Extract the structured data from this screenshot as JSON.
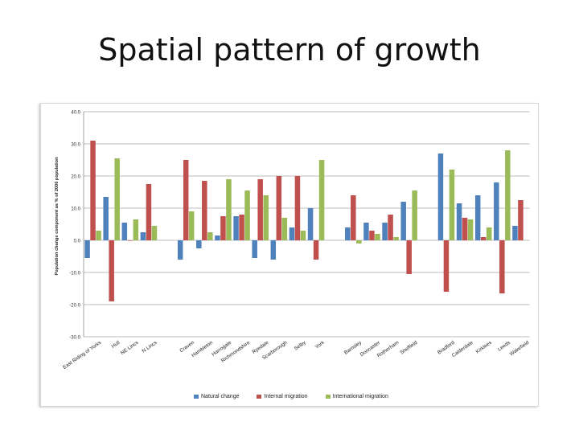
{
  "slide": {
    "title": "Spatial pattern of growth"
  },
  "chart_data": {
    "type": "bar",
    "ylabel": "Population change component as % of 2006 population",
    "ylim": [
      -30,
      40
    ],
    "yticks": [
      "40.0",
      "30.0",
      "20.0",
      "10.0",
      "0.0",
      "-10.0",
      "-20.0",
      "-30.0"
    ],
    "ytick_values": [
      40,
      30,
      20,
      10,
      0,
      -10,
      -20,
      -30
    ],
    "grid": true,
    "legend_position": "bottom",
    "categories": [
      "East Riding of Yorks",
      "Hull",
      "NE Lincs",
      "N Lincs",
      "",
      "Craven",
      "Hambleton",
      "Harrogate",
      "Richmondshire",
      "Ryedale",
      "Scarborough",
      "Selby",
      "York",
      "",
      "Barnsley",
      "Doncaster",
      "Rotherham",
      "Sheffield",
      "",
      "Bradford",
      "Calderdale",
      "Kirklees",
      "Leeds",
      "Wakefield"
    ],
    "series": [
      {
        "name": "Natural change",
        "color": "#4f81bd",
        "values": [
          -5.5,
          13.5,
          5.5,
          2.5,
          null,
          -6,
          -2.5,
          1.5,
          7.5,
          -5.5,
          -6,
          4,
          10,
          null,
          4,
          5.5,
          5.5,
          12,
          null,
          27,
          11.5,
          14,
          18,
          4.5
        ]
      },
      {
        "name": "Internal migration",
        "color": "#c0504d",
        "values": [
          31,
          -19,
          0,
          17.5,
          null,
          25,
          18.5,
          7.5,
          8,
          19,
          20,
          20,
          -6,
          null,
          14,
          3,
          8,
          -10.5,
          null,
          -16,
          7,
          1,
          -16.5,
          12.5
        ]
      },
      {
        "name": "International migration",
        "color": "#9bbb59",
        "values": [
          3,
          25.5,
          6.5,
          4.5,
          null,
          9,
          2.5,
          19,
          15.5,
          14,
          7,
          3,
          25,
          null,
          -1,
          2,
          1,
          15.5,
          null,
          22,
          6.5,
          4,
          28,
          null
        ]
      }
    ]
  }
}
